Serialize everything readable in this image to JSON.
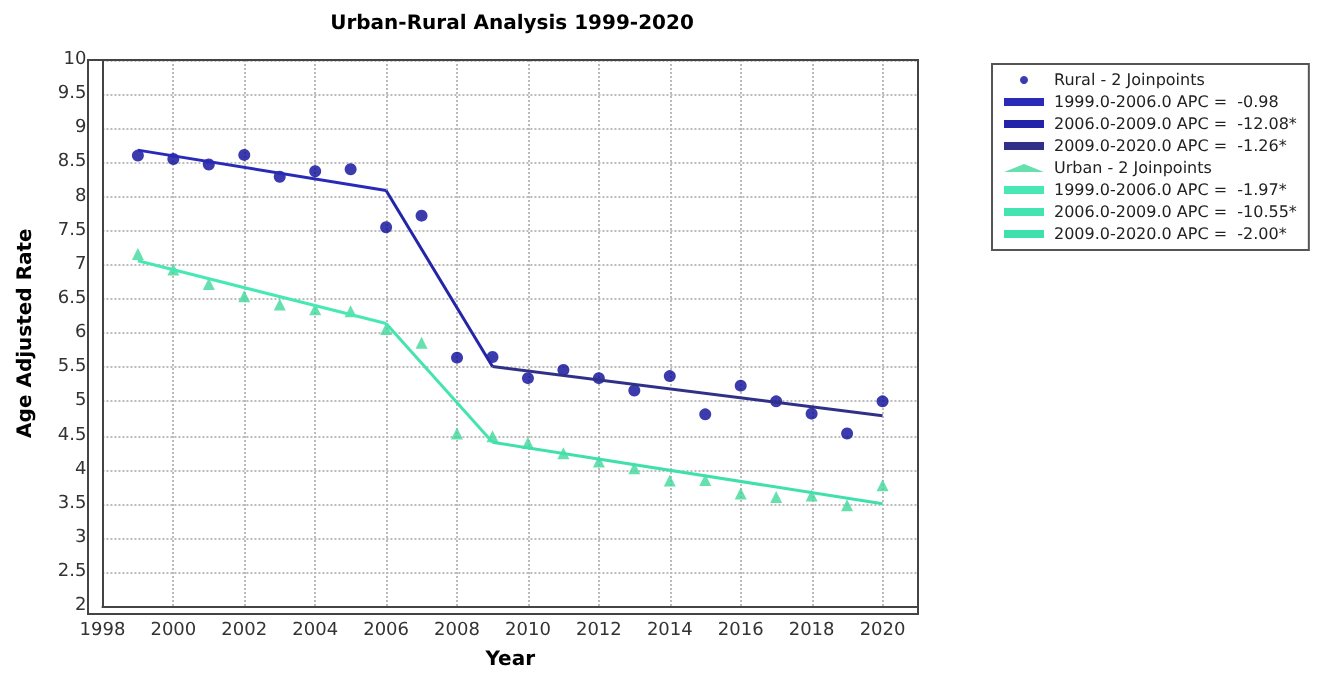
{
  "chart_data": {
    "type": "scatter",
    "title": "Urban-Rural Analysis 1999-2020",
    "xlabel": "Year",
    "ylabel": "Age Adjusted Rate",
    "xlim": [
      1998,
      2021
    ],
    "xticks": [
      1998,
      2000,
      2002,
      2004,
      2006,
      2008,
      2010,
      2012,
      2014,
      2016,
      2018,
      2020
    ],
    "ylim": [
      2,
      10
    ],
    "yticks": [
      2,
      2.5,
      3,
      3.5,
      4,
      4.5,
      5,
      5.5,
      6,
      6.5,
      7,
      7.5,
      8,
      8.5,
      9,
      9.5,
      10
    ],
    "grid": true,
    "legend": "right",
    "line_style": "solid",
    "series": [
      {
        "name": "Rural - 2 Joinpoints",
        "marker": "circle",
        "color": "#0a0a9a",
        "x": [
          1999,
          2000,
          2001,
          2002,
          2003,
          2004,
          2005,
          2006,
          2007,
          2008,
          2009,
          2010,
          2011,
          2012,
          2013,
          2014,
          2015,
          2016,
          2017,
          2018,
          2019,
          2020
        ],
        "values": [
          8.6,
          8.55,
          8.47,
          8.61,
          8.29,
          8.37,
          8.4,
          7.55,
          7.72,
          5.64,
          5.65,
          5.34,
          5.46,
          5.34,
          5.16,
          5.37,
          4.81,
          5.23,
          5.0,
          4.82,
          4.53,
          5.0
        ]
      },
      {
        "name": "1999.0-2006.0 APC =  -0.98",
        "type": "line",
        "marker": "none",
        "color": "#2a2ab8",
        "x": [
          1999,
          2006
        ],
        "values": [
          8.68,
          8.09
        ]
      },
      {
        "name": "2006.0-2009.0 APC =  -12.08*",
        "type": "line",
        "marker": "none",
        "color": "#2424a8",
        "x": [
          2006,
          2009
        ],
        "values": [
          8.09,
          5.51
        ]
      },
      {
        "name": "2009.0-2020.0 APC =  -1.26*",
        "type": "line",
        "marker": "none",
        "color": "#303088",
        "x": [
          2009,
          2020
        ],
        "values": [
          5.51,
          4.79
        ]
      },
      {
        "name": "Urban - 2 Joinpoints",
        "marker": "triangle",
        "color": "#3ed89a",
        "x": [
          1999,
          2000,
          2001,
          2002,
          2003,
          2004,
          2005,
          2006,
          2007,
          2008,
          2009,
          2010,
          2011,
          2012,
          2013,
          2014,
          2015,
          2016,
          2017,
          2018,
          2019,
          2020
        ],
        "values": [
          7.16,
          6.93,
          6.72,
          6.54,
          6.42,
          6.35,
          6.32,
          6.06,
          5.86,
          4.53,
          4.49,
          4.39,
          4.24,
          4.12,
          4.02,
          3.84,
          3.85,
          3.65,
          3.6,
          3.62,
          3.48,
          3.77
        ]
      },
      {
        "name": "1999.0-2006.0 APC =  -1.97*",
        "type": "line",
        "marker": "none",
        "color": "#48e8b4",
        "x": [
          1999,
          2006
        ],
        "values": [
          7.06,
          6.14
        ]
      },
      {
        "name": "2006.0-2009.0 APC =  -10.55*",
        "type": "line",
        "marker": "none",
        "color": "#44e4b0",
        "x": [
          2006,
          2009
        ],
        "values": [
          6.14,
          4.4
        ]
      },
      {
        "name": "2009.0-2020.0 APC =  -2.00*",
        "type": "line",
        "marker": "none",
        "color": "#40e0ac",
        "x": [
          2009,
          2020
        ],
        "values": [
          4.4,
          3.5
        ]
      }
    ]
  }
}
